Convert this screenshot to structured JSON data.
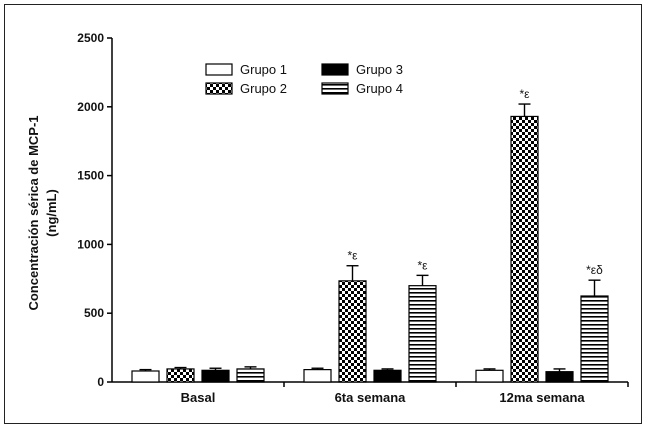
{
  "chart_data": {
    "type": "bar",
    "ylabel_line1": "Concentración sérica de MCP-1",
    "ylabel_line2": "(ng/mL)",
    "ylim": [
      0,
      2500
    ],
    "yticks": [
      0,
      500,
      1000,
      1500,
      2000,
      2500
    ],
    "categories": [
      "Basal",
      "6ta semana",
      "12ma semana"
    ],
    "legend_position": "top-center",
    "series": [
      {
        "name": "Grupo 1",
        "pattern": "white",
        "values": [
          80,
          90,
          85
        ],
        "errors": [
          10,
          10,
          10
        ]
      },
      {
        "name": "Grupo 2",
        "pattern": "checker",
        "values": [
          95,
          735,
          1930
        ],
        "errors": [
          10,
          110,
          90
        ]
      },
      {
        "name": "Grupo 3",
        "pattern": "black",
        "values": [
          85,
          85,
          75
        ],
        "errors": [
          15,
          10,
          20
        ]
      },
      {
        "name": "Grupo 4",
        "pattern": "horizontal",
        "values": [
          95,
          700,
          625
        ],
        "errors": [
          15,
          75,
          115
        ]
      }
    ],
    "annotations": [
      {
        "category": 1,
        "series": 1,
        "text": "*ε"
      },
      {
        "category": 1,
        "series": 3,
        "text": "*ε"
      },
      {
        "category": 2,
        "series": 1,
        "text": "*ε"
      },
      {
        "category": 2,
        "series": 3,
        "text": "*εδ"
      }
    ]
  }
}
